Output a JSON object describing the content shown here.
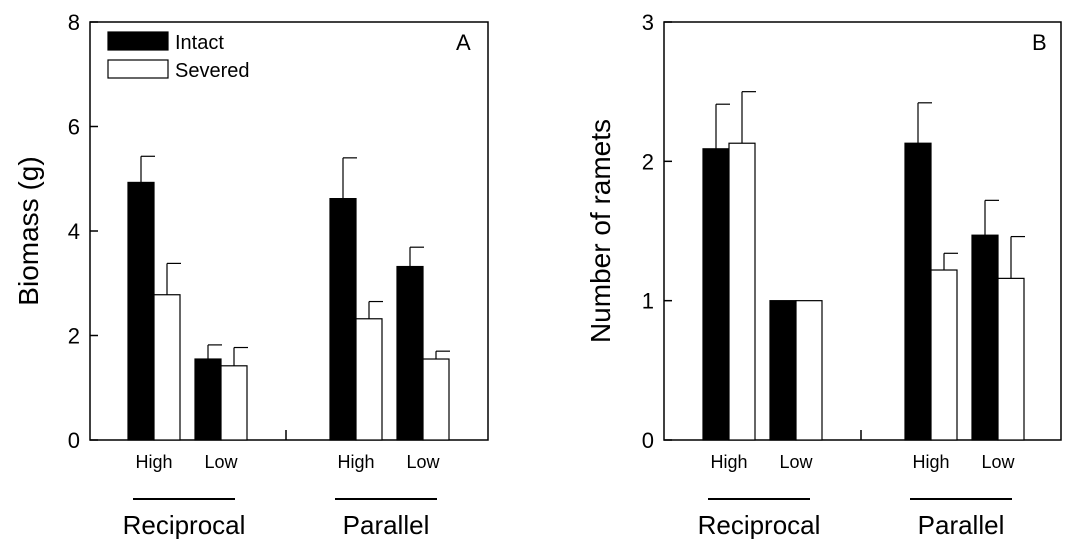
{
  "chart_data": [
    {
      "type": "bar",
      "panel_label": "A",
      "ylabel": "Biomass (g)",
      "xlabel": "",
      "ylim": [
        0,
        8
      ],
      "yticks": [
        0,
        2,
        4,
        6,
        8
      ],
      "ytick_labels": [
        "0",
        "2",
        "4",
        "6",
        "8"
      ],
      "grid": false,
      "legend_position": "top-left",
      "groups": [
        {
          "label": "Reciprocal",
          "categories": [
            "High",
            "Low"
          ]
        },
        {
          "label": "Parallel",
          "categories": [
            "High",
            "Low"
          ]
        }
      ],
      "categories": [
        "High",
        "Low",
        "High",
        "Low"
      ],
      "series": [
        {
          "name": "Intact",
          "color": "#000000",
          "values": [
            4.93,
            1.55,
            4.62,
            3.32
          ],
          "errors": [
            0.5,
            0.27,
            0.78,
            0.37
          ]
        },
        {
          "name": "Severed",
          "color": "#ffffff",
          "values": [
            2.78,
            1.42,
            2.32,
            1.55
          ],
          "errors": [
            0.6,
            0.35,
            0.33,
            0.15
          ]
        }
      ]
    },
    {
      "type": "bar",
      "panel_label": "B",
      "ylabel": "Number of ramets",
      "xlabel": "",
      "ylim": [
        0,
        3
      ],
      "yticks": [
        0,
        1,
        2,
        3
      ],
      "ytick_labels": [
        "0",
        "1",
        "2",
        "3"
      ],
      "grid": false,
      "legend_position": "none",
      "groups": [
        {
          "label": "Reciprocal",
          "categories": [
            "High",
            "Low"
          ]
        },
        {
          "label": "Parallel",
          "categories": [
            "High",
            "Low"
          ]
        }
      ],
      "categories": [
        "High",
        "Low",
        "High",
        "Low"
      ],
      "series": [
        {
          "name": "Intact",
          "color": "#000000",
          "values": [
            2.09,
            1.0,
            2.13,
            1.47
          ],
          "errors": [
            0.32,
            0.0,
            0.29,
            0.25
          ]
        },
        {
          "name": "Severed",
          "color": "#ffffff",
          "values": [
            2.13,
            1.0,
            1.22,
            1.16
          ],
          "errors": [
            0.37,
            0.0,
            0.12,
            0.3
          ]
        }
      ]
    }
  ]
}
